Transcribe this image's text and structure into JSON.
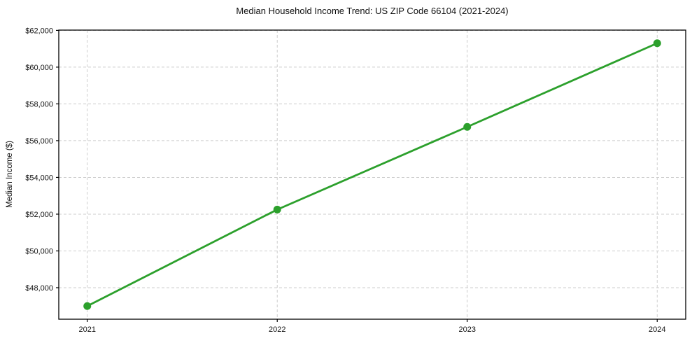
{
  "chart_data": {
    "type": "line",
    "title": "Median Household Income Trend: US ZIP Code 66104 (2021-2024)",
    "xlabel": "",
    "ylabel": "Median Income ($)",
    "x": [
      2021,
      2022,
      2023,
      2024
    ],
    "series": [
      {
        "name": "Median Household Income",
        "values": [
          47000,
          52250,
          56750,
          61300
        ]
      }
    ],
    "xticks": [
      2021,
      2022,
      2023,
      2024
    ],
    "xtick_labels": [
      "2021",
      "2022",
      "2023",
      "2024"
    ],
    "yticks": [
      48000,
      50000,
      52000,
      54000,
      56000,
      58000,
      60000,
      62000
    ],
    "ytick_labels": [
      "$48,000",
      "$50,000",
      "$52,000",
      "$54,000",
      "$56,000",
      "$58,000",
      "$60,000",
      "$62,000"
    ],
    "xlim": [
      2020.85,
      2024.15
    ],
    "ylim": [
      46285,
      62015
    ],
    "grid": true,
    "grid_style": "dashed",
    "legend_position": "none",
    "line_color": "#2ca02c",
    "marker_color": "#2ca02c",
    "grid_color": "#cccccc",
    "axis_color": "#000000",
    "tick_label_color": "#111111",
    "background": "#ffffff"
  }
}
